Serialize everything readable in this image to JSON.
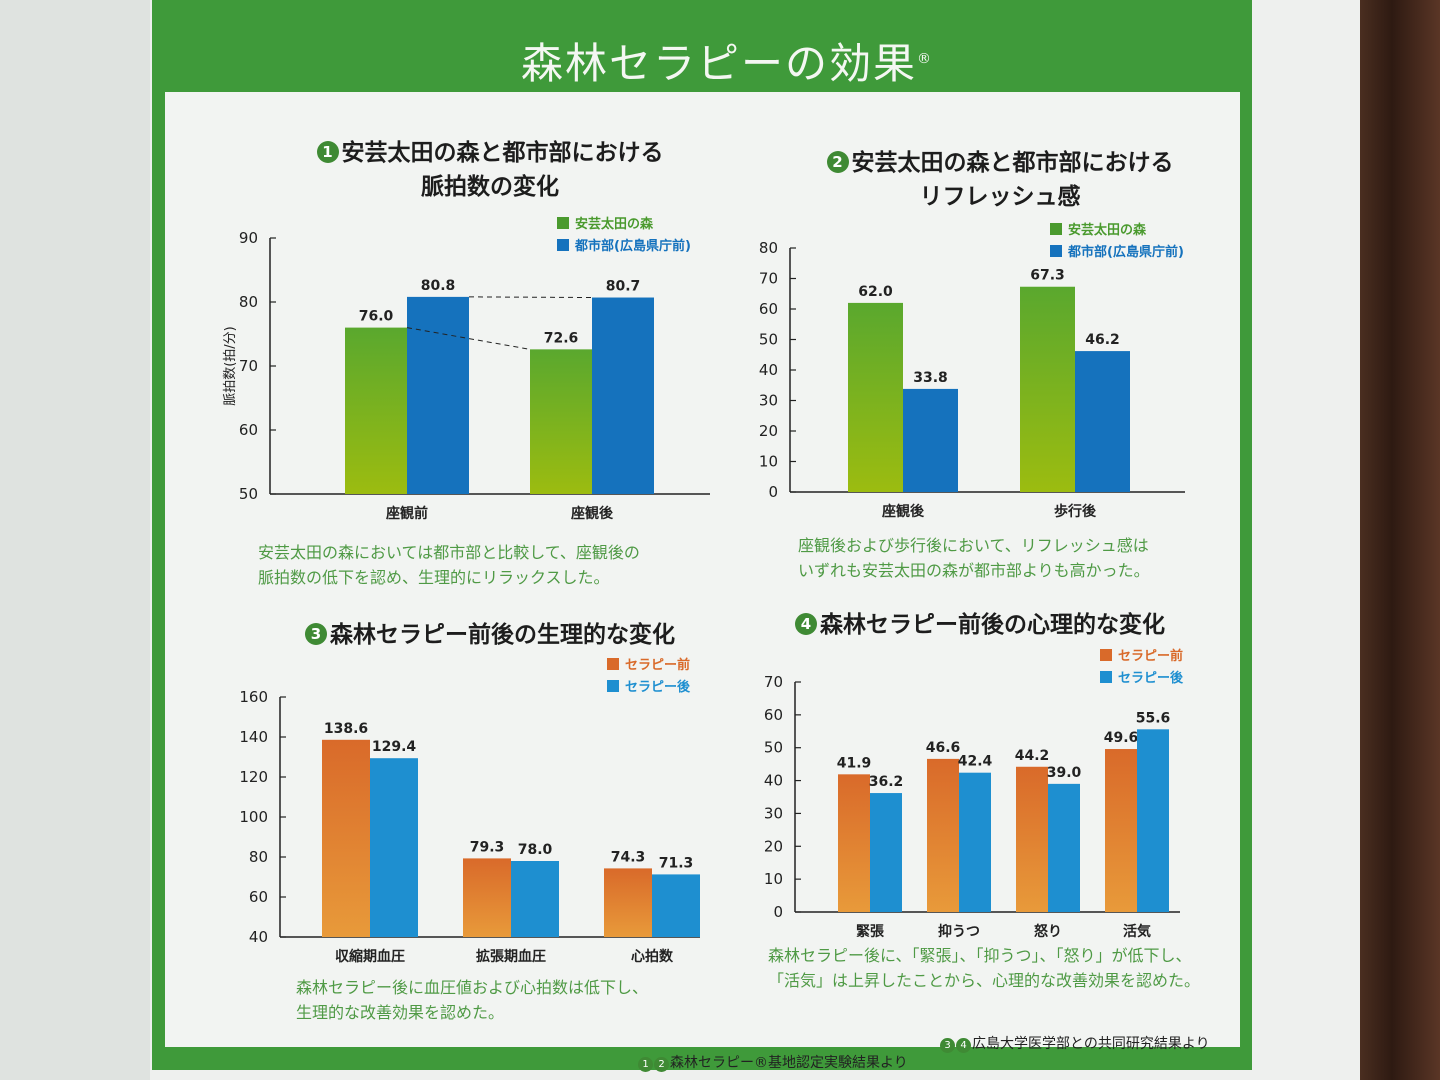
{
  "main_title": "森林セラピーの効果",
  "registered_mark": "®",
  "colors": {
    "green": "#5aa82e",
    "green_light": "#9cbc10",
    "blue": "#1572bd",
    "orange": "#d96a2a",
    "orange_light": "#e89a3a",
    "cyan": "#1e8fd0",
    "frame": "#3f9a3a"
  },
  "chart_data": [
    {
      "type": "bar",
      "number": "1",
      "title_line1": "安芸太田の森と都市部における",
      "title_line2": "脈拍数の変化",
      "ylabel": "脈拍数(拍/分)",
      "ylim": [
        50,
        90
      ],
      "yticks": [
        50,
        60,
        70,
        80,
        90
      ],
      "categories": [
        "座観前",
        "座観後"
      ],
      "series": [
        {
          "name": "安芸太田の森",
          "values": [
            76.0,
            72.6
          ],
          "labels": [
            "76.0",
            "72.6"
          ]
        },
        {
          "name": "都市部(広島県庁前)",
          "values": [
            80.8,
            80.7
          ],
          "labels": [
            "80.8",
            "80.7"
          ]
        }
      ],
      "note_line1": "安芸太田の森においては都市部と比較して、座観後の",
      "note_line2": "脈拍数の低下を認め、生理的にリラックスした。"
    },
    {
      "type": "bar",
      "number": "2",
      "title_line1": "安芸太田の森と都市部における",
      "title_line2": "リフレッシュ感",
      "ylabel": "",
      "ylim": [
        0,
        80
      ],
      "yticks": [
        0,
        10,
        20,
        30,
        40,
        50,
        60,
        70,
        80
      ],
      "categories": [
        "座観後",
        "歩行後"
      ],
      "series": [
        {
          "name": "安芸太田の森",
          "values": [
            62.0,
            67.3
          ],
          "labels": [
            "62.0",
            "67.3"
          ]
        },
        {
          "name": "都市部(広島県庁前)",
          "values": [
            33.8,
            46.2
          ],
          "labels": [
            "33.8",
            "46.2"
          ]
        }
      ],
      "note_line1": "座観後および歩行後において、リフレッシュ感は",
      "note_line2": "いずれも安芸太田の森が都市部よりも高かった。"
    },
    {
      "type": "bar",
      "number": "3",
      "title_line1": "森林セラピー前後の生理的な変化",
      "title_line2": "",
      "ylabel": "",
      "ylim": [
        40,
        160
      ],
      "yticks": [
        40,
        60,
        80,
        100,
        120,
        140,
        160
      ],
      "categories": [
        "収縮期血圧",
        "拡張期血圧",
        "心拍数"
      ],
      "series": [
        {
          "name": "セラピー前",
          "values": [
            138.6,
            79.3,
            74.3
          ],
          "labels": [
            "138.6",
            "79.3",
            "74.3"
          ]
        },
        {
          "name": "セラピー後",
          "values": [
            129.4,
            78.0,
            71.3
          ],
          "labels": [
            "129.4",
            "78.0",
            "71.3"
          ]
        }
      ],
      "note_line1": "森林セラピー後に血圧値および心拍数は低下し、",
      "note_line2": "生理的な改善効果を認めた。"
    },
    {
      "type": "bar",
      "number": "4",
      "title_line1": "森林セラピー前後の心理的な変化",
      "title_line2": "",
      "ylabel": "",
      "ylim": [
        0,
        70
      ],
      "yticks": [
        0,
        10,
        20,
        30,
        40,
        50,
        60,
        70
      ],
      "categories": [
        "緊張",
        "抑うつ",
        "怒り",
        "活気"
      ],
      "series": [
        {
          "name": "セラピー前",
          "values": [
            41.9,
            46.6,
            44.2,
            49.6
          ],
          "labels": [
            "41.9",
            "46.6",
            "44.2",
            "49.6"
          ]
        },
        {
          "name": "セラピー後",
          "values": [
            36.2,
            42.4,
            39.0,
            55.6
          ],
          "labels": [
            "36.2",
            "42.4",
            "39.0",
            "55.6"
          ]
        }
      ],
      "note_line1": "森林セラピー後に、「緊張」、「抑うつ」、「怒り」が低下し、",
      "note_line2": "「活気」は上昇したことから、心理的な改善効果を認めた。"
    }
  ],
  "footer": {
    "left_nums": [
      "1",
      "2"
    ],
    "left_text": "森林セラピー®基地認定実験結果より",
    "right_nums": [
      "3",
      "4"
    ],
    "right_text": "広島大学医学部との共同研究結果より"
  }
}
